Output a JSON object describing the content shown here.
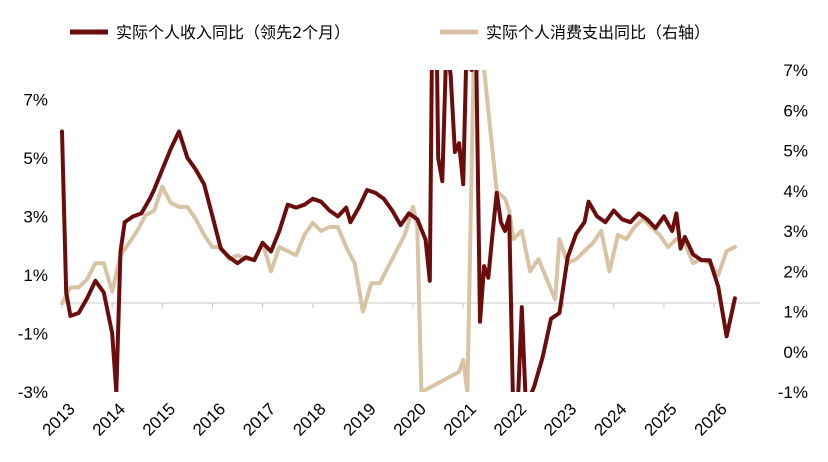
{
  "chart_data": {
    "type": "line",
    "title": "",
    "xlabel": "",
    "ylabel_left": "",
    "ylabel_right": "",
    "legend_position": "top",
    "grid": false,
    "x_axis": {
      "type": "date",
      "min": "2013-01",
      "max": "2026-12",
      "tick_labels": [
        "2013",
        "2014",
        "2015",
        "2016",
        "2017",
        "2018",
        "2019",
        "2020",
        "2021",
        "2022",
        "2023",
        "2024",
        "2025",
        "2026"
      ]
    },
    "left_axis": {
      "range": [
        -3,
        8
      ],
      "ticks": [
        7,
        5,
        3,
        1,
        -1,
        -3
      ],
      "tick_labels": [
        "7%",
        "5%",
        "3%",
        "1%",
        "-1%",
        "-3%"
      ]
    },
    "right_axis": {
      "range": [
        -1,
        7
      ],
      "ticks": [
        7,
        6,
        5,
        4,
        3,
        2,
        1,
        0,
        -1
      ],
      "tick_labels": [
        "7%",
        "6%",
        "5%",
        "4%",
        "3%",
        "2%",
        "1%",
        "0%",
        "-1%"
      ]
    },
    "series": [
      {
        "name": "实际个人收入同比（领先2个月）",
        "axis": "left",
        "color": "#6b0d0d",
        "points": [
          [
            "2013-01",
            5.9
          ],
          [
            "2013-02",
            0.4
          ],
          [
            "2013-03",
            -0.4
          ],
          [
            "2013-05",
            -0.3
          ],
          [
            "2013-07",
            0.2
          ],
          [
            "2013-09",
            0.8
          ],
          [
            "2013-11",
            0.4
          ],
          [
            "2014-01",
            -1.0
          ],
          [
            "2014-02",
            -3.0
          ],
          [
            "2014-03",
            1.8
          ],
          [
            "2014-04",
            2.8
          ],
          [
            "2014-06",
            3.0
          ],
          [
            "2014-08",
            3.1
          ],
          [
            "2014-10",
            3.6
          ],
          [
            "2014-11",
            3.9
          ],
          [
            "2015-01",
            4.6
          ],
          [
            "2015-03",
            5.3
          ],
          [
            "2015-05",
            5.9
          ],
          [
            "2015-07",
            5.0
          ],
          [
            "2015-09",
            4.6
          ],
          [
            "2015-11",
            4.1
          ],
          [
            "2016-01",
            3.0
          ],
          [
            "2016-03",
            1.9
          ],
          [
            "2016-05",
            1.6
          ],
          [
            "2016-07",
            1.4
          ],
          [
            "2016-09",
            1.6
          ],
          [
            "2016-11",
            1.5
          ],
          [
            "2017-01",
            2.1
          ],
          [
            "2017-03",
            1.8
          ],
          [
            "2017-05",
            2.5
          ],
          [
            "2017-07",
            3.4
          ],
          [
            "2017-09",
            3.3
          ],
          [
            "2017-11",
            3.4
          ],
          [
            "2018-01",
            3.6
          ],
          [
            "2018-03",
            3.5
          ],
          [
            "2018-05",
            3.2
          ],
          [
            "2018-07",
            3.0
          ],
          [
            "2018-09",
            3.3
          ],
          [
            "2018-10",
            2.8
          ],
          [
            "2018-12",
            3.3
          ],
          [
            "2019-02",
            3.9
          ],
          [
            "2019-04",
            3.8
          ],
          [
            "2019-06",
            3.6
          ],
          [
            "2019-08",
            3.2
          ],
          [
            "2019-10",
            2.7
          ],
          [
            "2019-12",
            3.1
          ],
          [
            "2020-02",
            2.9
          ],
          [
            "2020-04",
            2.2
          ],
          [
            "2020-05",
            0.8
          ],
          [
            "2020-06",
            16.0
          ],
          [
            "2020-07",
            5.0
          ],
          [
            "2020-08",
            4.2
          ],
          [
            "2020-09",
            9.0
          ],
          [
            "2020-10",
            7.8
          ],
          [
            "2020-11",
            5.2
          ],
          [
            "2020-12",
            5.5
          ],
          [
            "2021-01",
            4.1
          ],
          [
            "2021-02",
            10.0
          ],
          [
            "2021-03",
            8.0
          ],
          [
            "2021-04",
            9.5
          ],
          [
            "2021-05",
            -0.6
          ],
          [
            "2021-06",
            1.3
          ],
          [
            "2021-07",
            0.9
          ],
          [
            "2021-08",
            2.4
          ],
          [
            "2021-09",
            3.8
          ],
          [
            "2021-10",
            2.8
          ],
          [
            "2021-11",
            2.5
          ],
          [
            "2021-12",
            3.0
          ],
          [
            "2022-01",
            -4.0
          ],
          [
            "2022-02",
            -3.6
          ],
          [
            "2022-03",
            -0.1
          ],
          [
            "2022-04",
            -3.5
          ],
          [
            "2022-06",
            -2.8
          ],
          [
            "2022-08",
            -1.8
          ],
          [
            "2022-10",
            -0.5
          ],
          [
            "2022-12",
            -0.3
          ],
          [
            "2023-02",
            1.6
          ],
          [
            "2023-04",
            2.4
          ],
          [
            "2023-06",
            2.8
          ],
          [
            "2023-07",
            3.5
          ],
          [
            "2023-09",
            3.0
          ],
          [
            "2023-11",
            2.8
          ],
          [
            "2024-01",
            3.2
          ],
          [
            "2024-03",
            2.9
          ],
          [
            "2024-05",
            2.8
          ],
          [
            "2024-07",
            3.1
          ],
          [
            "2024-09",
            2.9
          ],
          [
            "2024-11",
            2.6
          ],
          [
            "2025-01",
            3.0
          ],
          [
            "2025-03",
            2.5
          ],
          [
            "2025-04",
            3.1
          ],
          [
            "2025-05",
            1.9
          ],
          [
            "2025-06",
            2.3
          ],
          [
            "2025-08",
            1.7
          ],
          [
            "2025-10",
            1.5
          ],
          [
            "2025-12",
            1.5
          ],
          [
            "2026-02",
            0.6
          ],
          [
            "2026-04",
            -1.1
          ],
          [
            "2026-06",
            0.2
          ]
        ]
      },
      {
        "name": "实际个人消费支出同比（右轴）",
        "axis": "right",
        "color": "#d8c3a5",
        "points": [
          [
            "2013-01",
            1.2
          ],
          [
            "2013-03",
            1.6
          ],
          [
            "2013-05",
            1.6
          ],
          [
            "2013-07",
            1.8
          ],
          [
            "2013-09",
            2.2
          ],
          [
            "2013-11",
            2.2
          ],
          [
            "2014-01",
            1.5
          ],
          [
            "2014-03",
            2.4
          ],
          [
            "2014-05",
            2.7
          ],
          [
            "2014-07",
            3.0
          ],
          [
            "2014-09",
            3.4
          ],
          [
            "2014-11",
            3.5
          ],
          [
            "2015-01",
            4.1
          ],
          [
            "2015-03",
            3.7
          ],
          [
            "2015-05",
            3.6
          ],
          [
            "2015-07",
            3.6
          ],
          [
            "2015-09",
            3.3
          ],
          [
            "2015-11",
            2.9
          ],
          [
            "2016-01",
            2.6
          ],
          [
            "2016-03",
            2.6
          ],
          [
            "2016-05",
            2.3
          ],
          [
            "2016-07",
            2.4
          ],
          [
            "2016-09",
            2.3
          ],
          [
            "2016-11",
            2.3
          ],
          [
            "2017-01",
            2.7
          ],
          [
            "2017-03",
            2.0
          ],
          [
            "2017-05",
            2.6
          ],
          [
            "2017-07",
            2.5
          ],
          [
            "2017-09",
            2.4
          ],
          [
            "2017-11",
            2.9
          ],
          [
            "2018-01",
            3.2
          ],
          [
            "2018-03",
            3.0
          ],
          [
            "2018-05",
            3.1
          ],
          [
            "2018-07",
            3.1
          ],
          [
            "2018-09",
            2.6
          ],
          [
            "2018-11",
            2.2
          ],
          [
            "2019-01",
            1.0
          ],
          [
            "2019-03",
            1.7
          ],
          [
            "2019-05",
            1.7
          ],
          [
            "2019-07",
            2.1
          ],
          [
            "2019-09",
            2.5
          ],
          [
            "2019-11",
            2.9
          ],
          [
            "2020-01",
            3.6
          ],
          [
            "2020-02",
            3.1
          ],
          [
            "2020-03",
            -1.0
          ],
          [
            "2020-12",
            -0.5
          ],
          [
            "2021-01",
            -0.2
          ],
          [
            "2021-02",
            -1.0
          ],
          [
            "2021-04",
            10.0
          ],
          [
            "2021-05",
            8.0
          ],
          [
            "2021-07",
            6.0
          ],
          [
            "2021-09",
            4.0
          ],
          [
            "2021-11",
            3.8
          ],
          [
            "2021-12",
            3.5
          ],
          [
            "2022-01",
            2.8
          ],
          [
            "2022-03",
            3.0
          ],
          [
            "2022-05",
            2.0
          ],
          [
            "2022-07",
            2.3
          ],
          [
            "2022-09",
            1.8
          ],
          [
            "2022-11",
            1.3
          ],
          [
            "2022-12",
            2.8
          ],
          [
            "2023-02",
            2.2
          ],
          [
            "2023-04",
            2.3
          ],
          [
            "2023-06",
            2.5
          ],
          [
            "2023-08",
            2.7
          ],
          [
            "2023-10",
            3.0
          ],
          [
            "2023-12",
            2.0
          ],
          [
            "2024-02",
            2.9
          ],
          [
            "2024-04",
            2.8
          ],
          [
            "2024-06",
            3.1
          ],
          [
            "2024-08",
            3.3
          ],
          [
            "2024-10",
            3.1
          ],
          [
            "2024-12",
            2.9
          ],
          [
            "2025-02",
            2.6
          ],
          [
            "2025-04",
            2.8
          ],
          [
            "2025-06",
            2.7
          ],
          [
            "2025-08",
            2.2
          ],
          [
            "2025-10",
            2.3
          ],
          [
            "2025-12",
            2.2
          ],
          [
            "2026-02",
            1.9
          ],
          [
            "2026-04",
            2.5
          ],
          [
            "2026-06",
            2.6
          ]
        ]
      }
    ]
  }
}
